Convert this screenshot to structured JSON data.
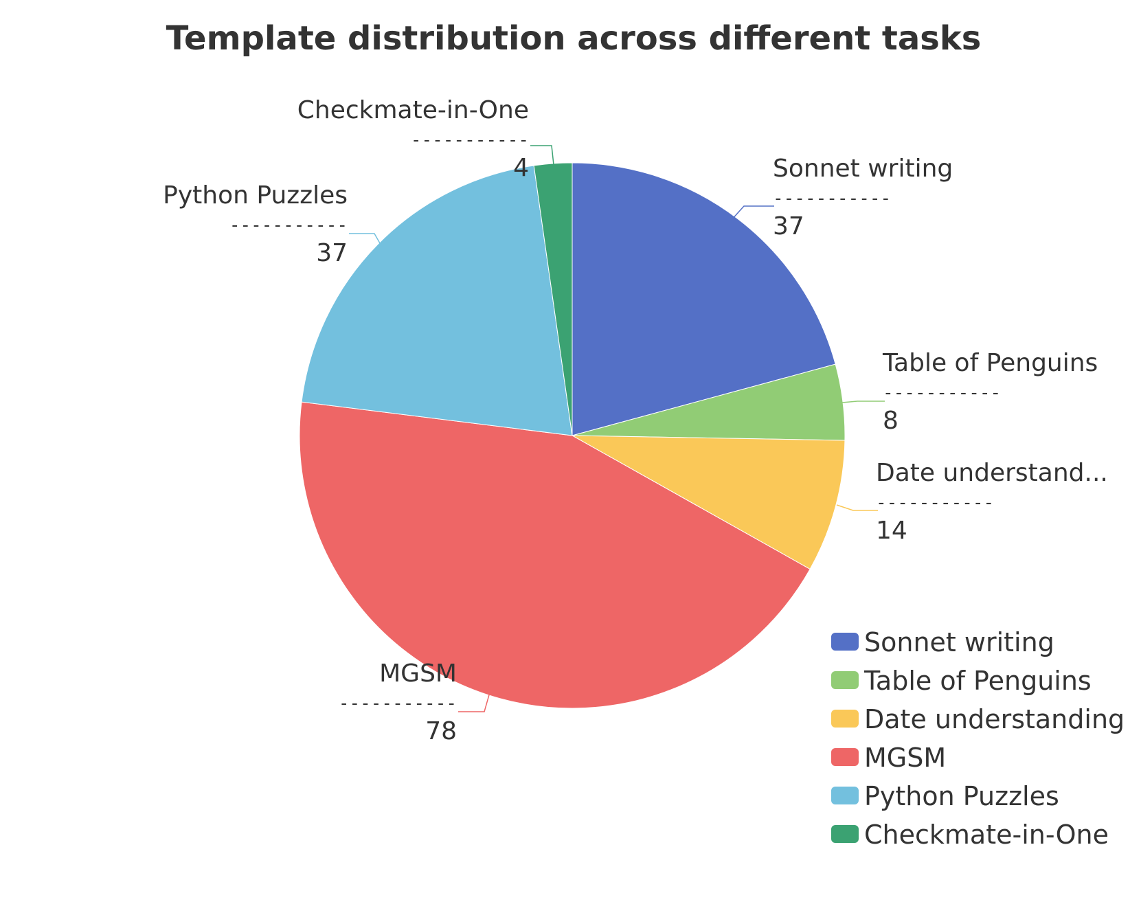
{
  "chart_data": {
    "type": "pie",
    "title": "Template distribution across different tasks",
    "categories": [
      "Sonnet writing",
      "Table of Penguins",
      "Date understanding",
      "MGSM",
      "Python Puzzles",
      "Checkmate-in-One"
    ],
    "values": [
      37,
      8,
      14,
      78,
      37,
      4
    ],
    "slice_labels": [
      "Sonnet writing",
      "Table of Penguins",
      "Date understand...",
      "MGSM",
      "Python Puzzles",
      "Checkmate-in-One"
    ],
    "colors": [
      "#5470c6",
      "#91cc75",
      "#fac858",
      "#ee6666",
      "#73c0de",
      "#3ba272"
    ],
    "start_angle_deg": 90,
    "direction": "clockwise",
    "legend_position": "bottom-right",
    "label_separator": "-----------"
  }
}
